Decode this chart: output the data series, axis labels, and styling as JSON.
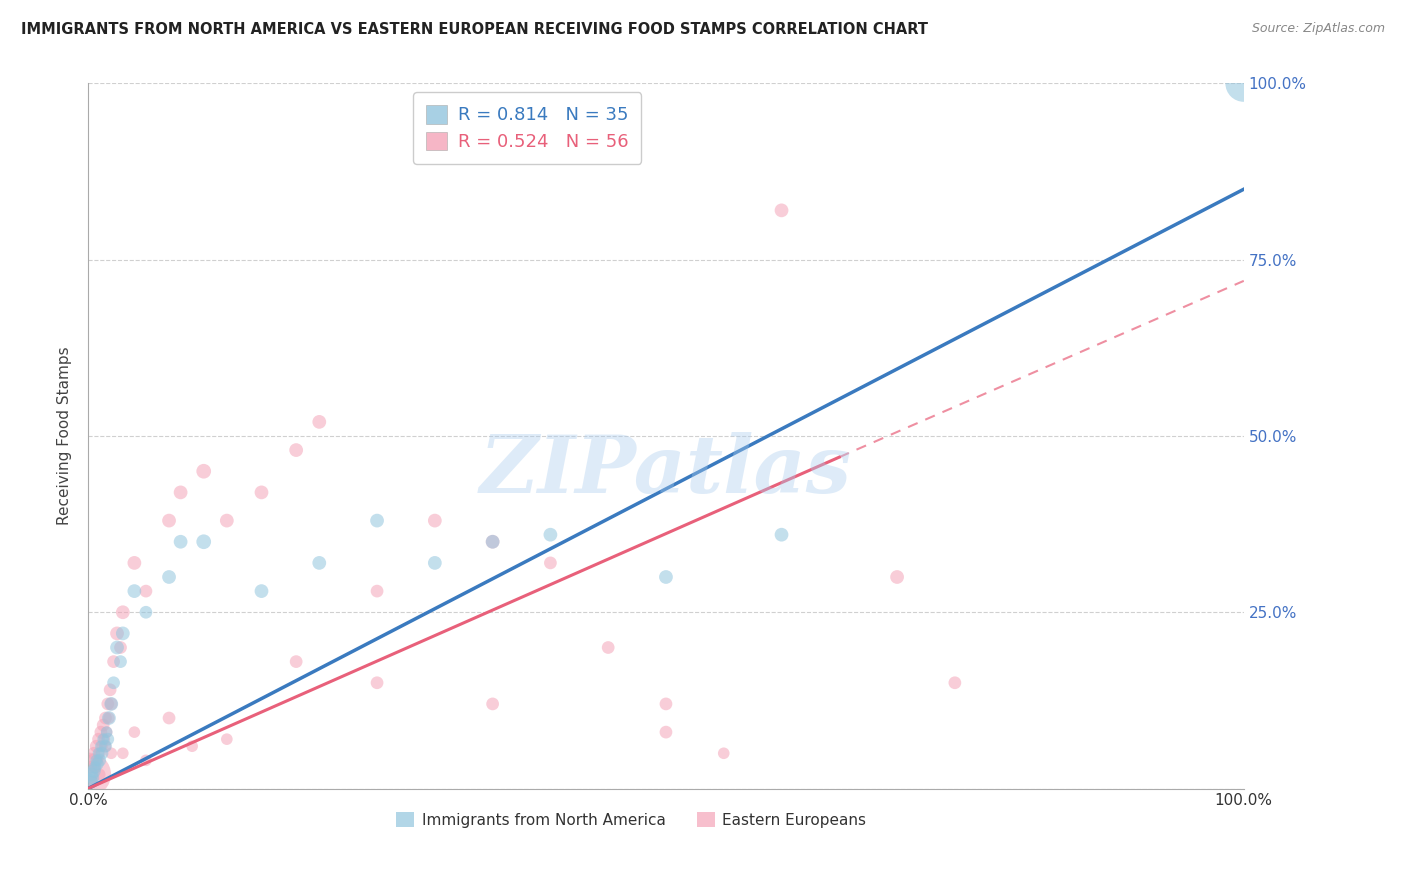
{
  "title": "IMMIGRANTS FROM NORTH AMERICA VS EASTERN EUROPEAN RECEIVING FOOD STAMPS CORRELATION CHART",
  "source": "Source: ZipAtlas.com",
  "ylabel": "Receiving Food Stamps",
  "watermark": "ZIPatlas",
  "xlim": [
    0,
    1
  ],
  "ylim": [
    0,
    1
  ],
  "blue_color": "#92c5de",
  "pink_color": "#f4a4b8",
  "blue_line_color": "#3a7abf",
  "pink_line_color": "#e8607a",
  "legend_blue_r": "R = 0.814",
  "legend_blue_n": "N = 35",
  "legend_pink_r": "R = 0.524",
  "legend_pink_n": "N = 56",
  "blue_line_x0": 0.0,
  "blue_line_y0": 0.0,
  "blue_line_x1": 1.0,
  "blue_line_y1": 0.85,
  "pink_line_solid_x0": 0.0,
  "pink_line_solid_y0": 0.0,
  "pink_line_solid_x1": 0.65,
  "pink_line_solid_y1": 0.47,
  "pink_line_dash_x0": 0.65,
  "pink_line_dash_y0": 0.47,
  "pink_line_dash_x1": 1.0,
  "pink_line_dash_y1": 0.72,
  "blue_scatter_x": [
    0.002,
    0.003,
    0.004,
    0.005,
    0.006,
    0.007,
    0.008,
    0.009,
    0.01,
    0.011,
    0.012,
    0.013,
    0.015,
    0.016,
    0.017,
    0.018,
    0.02,
    0.022,
    0.025,
    0.028,
    0.03,
    0.04,
    0.05,
    0.07,
    0.08,
    0.1,
    0.15,
    0.2,
    0.25,
    0.3,
    0.35,
    0.4,
    0.5,
    0.6,
    1.0
  ],
  "blue_scatter_y": [
    0.01,
    0.02,
    0.015,
    0.025,
    0.03,
    0.04,
    0.035,
    0.05,
    0.04,
    0.06,
    0.05,
    0.07,
    0.06,
    0.08,
    0.07,
    0.1,
    0.12,
    0.15,
    0.2,
    0.18,
    0.22,
    0.28,
    0.25,
    0.3,
    0.35,
    0.35,
    0.28,
    0.32,
    0.38,
    0.32,
    0.35,
    0.36,
    0.3,
    0.36,
    1.0
  ],
  "blue_scatter_s": [
    40,
    35,
    30,
    35,
    30,
    25,
    30,
    25,
    30,
    25,
    30,
    25,
    30,
    25,
    30,
    35,
    35,
    30,
    35,
    30,
    35,
    35,
    30,
    35,
    35,
    40,
    35,
    35,
    35,
    35,
    35,
    35,
    35,
    35,
    250
  ],
  "pink_scatter_x": [
    0.001,
    0.002,
    0.003,
    0.004,
    0.005,
    0.006,
    0.007,
    0.008,
    0.009,
    0.01,
    0.011,
    0.012,
    0.013,
    0.014,
    0.015,
    0.016,
    0.017,
    0.018,
    0.019,
    0.02,
    0.022,
    0.025,
    0.028,
    0.03,
    0.04,
    0.05,
    0.07,
    0.08,
    0.1,
    0.12,
    0.15,
    0.18,
    0.2,
    0.25,
    0.3,
    0.35,
    0.4,
    0.45,
    0.5,
    0.55,
    0.6,
    0.7,
    0.75,
    0.5,
    0.35,
    0.25,
    0.18,
    0.12,
    0.09,
    0.07,
    0.05,
    0.04,
    0.03,
    0.02,
    0.015,
    0.01
  ],
  "pink_scatter_y": [
    0.02,
    0.03,
    0.01,
    0.04,
    0.05,
    0.03,
    0.06,
    0.04,
    0.07,
    0.05,
    0.08,
    0.06,
    0.09,
    0.07,
    0.1,
    0.08,
    0.12,
    0.1,
    0.14,
    0.12,
    0.18,
    0.22,
    0.2,
    0.25,
    0.32,
    0.28,
    0.38,
    0.42,
    0.45,
    0.38,
    0.42,
    0.48,
    0.52,
    0.28,
    0.38,
    0.35,
    0.32,
    0.2,
    0.12,
    0.05,
    0.82,
    0.3,
    0.15,
    0.08,
    0.12,
    0.15,
    0.18,
    0.07,
    0.06,
    0.1,
    0.04,
    0.08,
    0.05,
    0.05,
    0.06,
    0.02
  ],
  "pink_scatter_s": [
    350,
    30,
    25,
    30,
    30,
    25,
    30,
    25,
    30,
    25,
    30,
    25,
    30,
    25,
    30,
    25,
    30,
    25,
    30,
    30,
    30,
    35,
    30,
    35,
    35,
    30,
    35,
    35,
    40,
    35,
    35,
    35,
    35,
    30,
    35,
    35,
    30,
    30,
    30,
    25,
    35,
    35,
    30,
    30,
    30,
    30,
    30,
    25,
    25,
    30,
    25,
    25,
    25,
    25,
    25,
    25
  ],
  "background_color": "#ffffff",
  "grid_color": "#d0d0d0",
  "title_color": "#222222",
  "axis_label_color": "#444444",
  "right_tick_color": "#4472c4",
  "xtick_color": "#333333"
}
